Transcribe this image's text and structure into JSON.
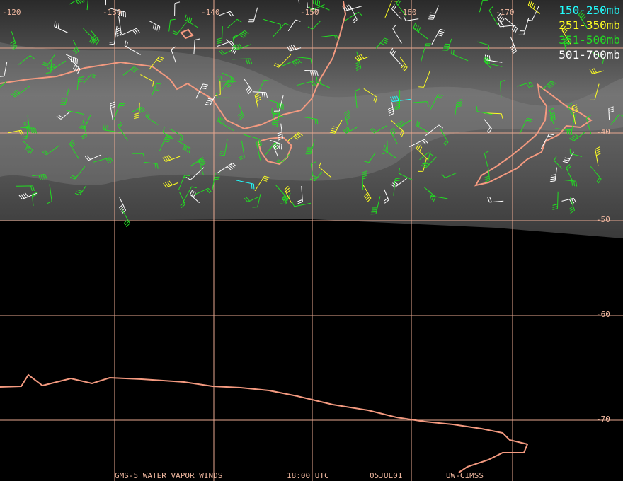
{
  "map": {
    "longitude_labels": [
      "-120",
      "-130",
      "-140",
      "-150",
      "-160",
      "-170"
    ],
    "latitude_labels": [
      "-40",
      "-50",
      "-60",
      "-70"
    ],
    "legend": [
      "150-250mb",
      "251-350mb",
      "351-500mb",
      "501-700mb"
    ],
    "footer": [
      "GMS-5 WATER VAPOR WINDS",
      "18:00 UTC",
      "05JUL01",
      "UW-CIMSS"
    ]
  }
}
